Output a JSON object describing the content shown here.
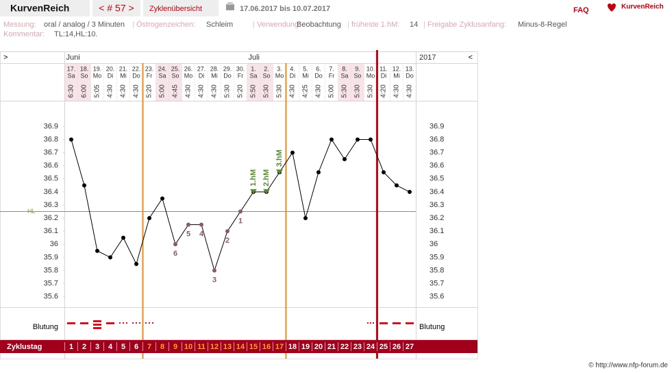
{
  "header": {
    "app": "KurvenReich",
    "cycle_nav": "< # 57 >",
    "overview": "Zyklenübersicht",
    "date_range": "17.06.2017 bis 10.07.2017",
    "faq": "FAQ",
    "logo": "KurvenReich"
  },
  "info": [
    {
      "label": "Messung:",
      "value": "oral / analog / 3 Minuten"
    },
    {
      "label": "Östrogenzeichen:",
      "value": "Schleim"
    },
    {
      "label": "Verwendung:",
      "value": "Beobachtung"
    },
    {
      "label": "früheste 1.hM:",
      "value": "14"
    },
    {
      "label": "Freigabe Zyklusanfang:",
      "value": "Minus-8-Regel"
    }
  ],
  "comment": {
    "label": "Kommentar:",
    "value": "TL:14,HL:10."
  },
  "chart_data": {
    "type": "line",
    "nav_left": ">",
    "nav_right": "<",
    "year": "2017",
    "months": [
      "Juni",
      null,
      null,
      null,
      null,
      null,
      null,
      null,
      null,
      null,
      null,
      null,
      null,
      null,
      "Juli",
      null,
      null,
      null,
      null,
      null,
      null,
      null,
      null,
      null,
      null,
      null,
      null
    ],
    "categories": [
      "17.",
      "18.",
      "19.",
      "20.",
      "21.",
      "22.",
      "23.",
      "24.",
      "25.",
      "26.",
      "27.",
      "28.",
      "29.",
      "30.",
      "1.",
      "2.",
      "3.",
      "4.",
      "5.",
      "6.",
      "7.",
      "8.",
      "9.",
      "10.",
      "11.",
      "12.",
      "13."
    ],
    "weekdays": [
      "Sa",
      "So",
      "Mo",
      "Di",
      "Mi",
      "Do",
      "Fr",
      "Sa",
      "So",
      "Mo",
      "Di",
      "Mi",
      "Do",
      "Fr",
      "Sa",
      "So",
      "Mo",
      "Di",
      "Mi",
      "Do",
      "Fr",
      "Sa",
      "So",
      "Mo",
      "Di",
      "Mi",
      "Do"
    ],
    "times": [
      "6:30",
      "6:00",
      "5:05",
      "4:30",
      "4:30",
      "4:30",
      "5:20",
      "5:00",
      "4:45",
      "4:30",
      "4:30",
      "4:30",
      "5:30",
      "5:20",
      "5:50",
      "5:30",
      "5:30",
      "4:30",
      "4:25",
      "4:30",
      "5:00",
      "5:30",
      "5:30",
      "5:30",
      "4:20",
      "4:30",
      "4:30"
    ],
    "values": [
      36.8,
      36.45,
      35.95,
      35.9,
      36.05,
      35.85,
      36.2,
      36.35,
      36.0,
      36.15,
      36.15,
      35.8,
      36.1,
      36.25,
      36.4,
      36.4,
      36.55,
      36.7,
      36.2,
      36.55,
      36.8,
      36.65,
      36.8,
      36.8,
      36.55,
      36.45,
      36.4
    ],
    "color": "#000000",
    "low_color": "#8a5a6a",
    "ylim": [
      35.52,
      37.08
    ],
    "yticks": [
      35.6,
      35.7,
      35.8,
      35.9,
      36,
      36.1,
      36.2,
      36.3,
      36.4,
      36.5,
      36.6,
      36.7,
      36.8,
      36.9
    ],
    "cover_line": {
      "label": "HL",
      "value": 36.25
    },
    "low_labels": [
      null,
      null,
      null,
      null,
      null,
      null,
      null,
      null,
      6,
      5,
      4,
      3,
      2,
      1,
      null,
      null,
      null,
      null,
      null,
      null,
      null,
      null,
      null,
      null,
      null,
      null,
      null
    ],
    "peak_labels": [
      null,
      null,
      null,
      null,
      null,
      null,
      null,
      null,
      null,
      null,
      null,
      null,
      null,
      null,
      "1.hM",
      "2.hM",
      "3.hM",
      null,
      null,
      null,
      null,
      null,
      null,
      null,
      null,
      null,
      null
    ],
    "bleeding_label": "Blutung",
    "cycle_day_label": "Zyklustag",
    "cycle_days": [
      1,
      2,
      3,
      4,
      5,
      6,
      7,
      8,
      9,
      10,
      11,
      12,
      13,
      14,
      15,
      16,
      17,
      18,
      19,
      20,
      21,
      22,
      23,
      24,
      25,
      26,
      27
    ]
  },
  "footer": "© http://www.nfp-forum.de"
}
